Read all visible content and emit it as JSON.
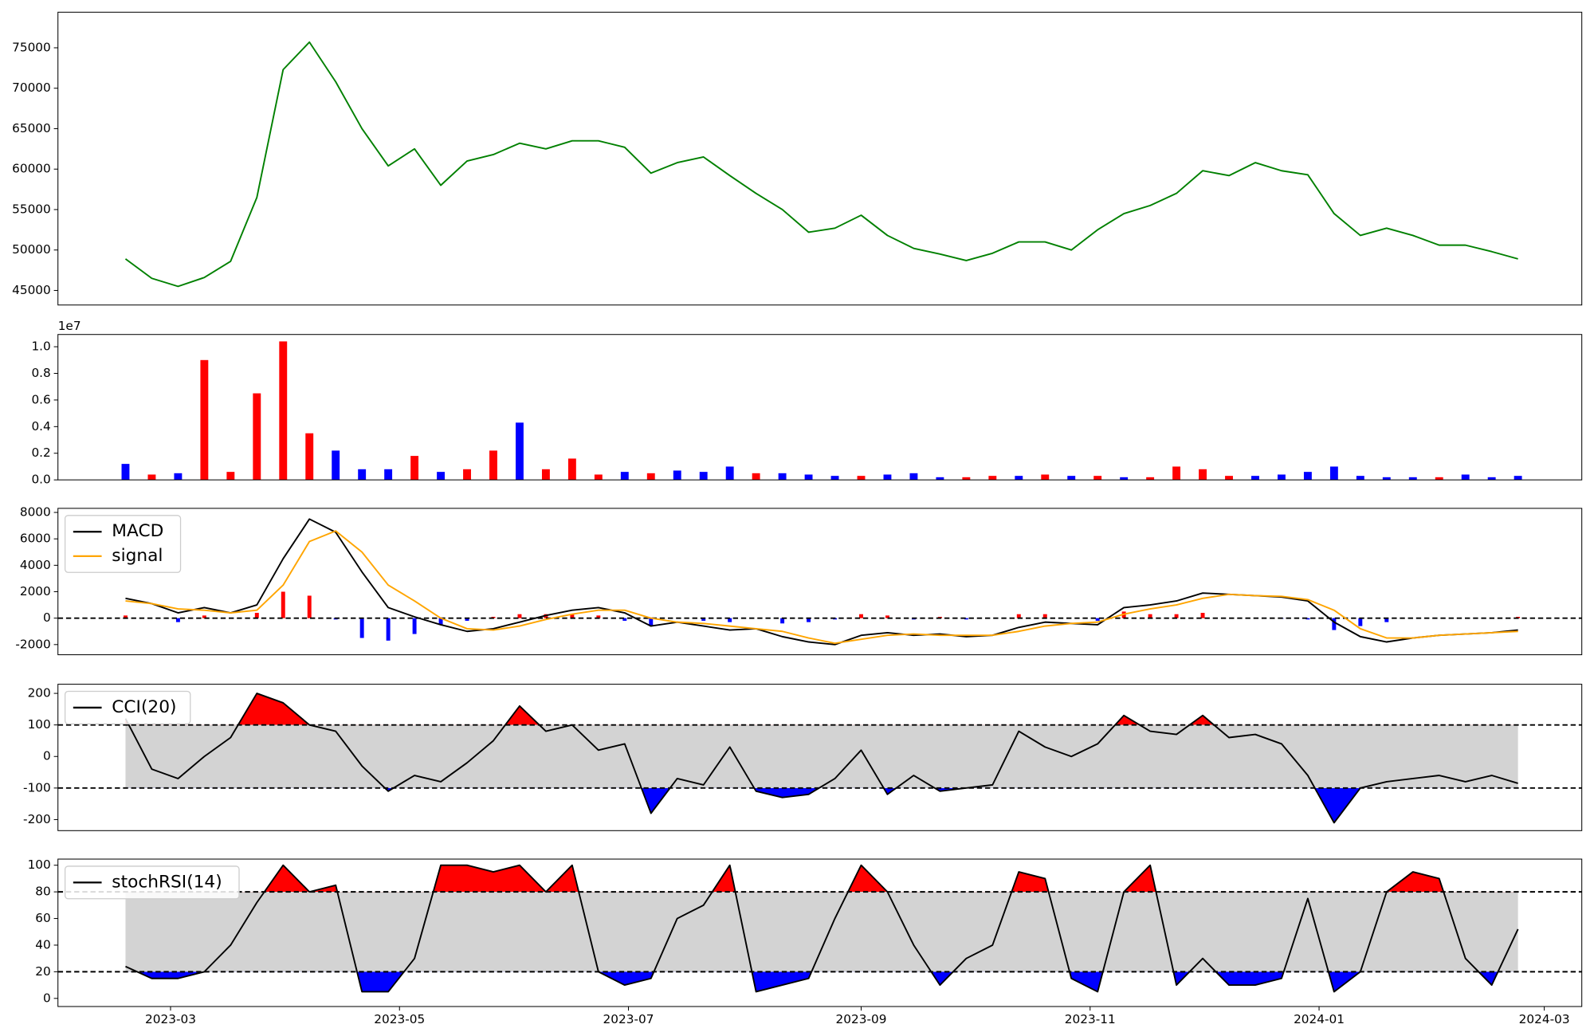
{
  "chart_data": [
    {
      "type": "line",
      "xlim": [
        "2023-01-30",
        "2024-03-11"
      ],
      "ylim": [
        43200,
        79400
      ],
      "yticks": [
        45000,
        50000,
        55000,
        60000,
        65000,
        70000,
        75000
      ],
      "x": [
        "2023-02-17",
        "2023-02-24",
        "2023-03-03",
        "2023-03-10",
        "2023-03-17",
        "2023-03-24",
        "2023-03-31",
        "2023-04-07",
        "2023-04-14",
        "2023-04-21",
        "2023-04-28",
        "2023-05-05",
        "2023-05-12",
        "2023-05-19",
        "2023-05-26",
        "2023-06-02",
        "2023-06-09",
        "2023-06-16",
        "2023-06-23",
        "2023-06-30",
        "2023-07-07",
        "2023-07-14",
        "2023-07-21",
        "2023-07-28",
        "2023-08-04",
        "2023-08-11",
        "2023-08-18",
        "2023-08-25",
        "2023-09-01",
        "2023-09-08",
        "2023-09-15",
        "2023-09-22",
        "2023-09-29",
        "2023-10-06",
        "2023-10-13",
        "2023-10-20",
        "2023-10-27",
        "2023-11-03",
        "2023-11-10",
        "2023-11-17",
        "2023-11-24",
        "2023-12-01",
        "2023-12-08",
        "2023-12-15",
        "2023-12-22",
        "2023-12-29",
        "2024-01-05",
        "2024-01-12",
        "2024-01-19",
        "2024-01-26",
        "2024-02-02",
        "2024-02-09",
        "2024-02-16",
        "2024-02-23"
      ],
      "series": [
        {
          "color": "green",
          "values": [
            48900,
            46500,
            45500,
            46600,
            48600,
            56500,
            72300,
            75700,
            70800,
            65000,
            60400,
            62500,
            58000,
            61000,
            61800,
            63200,
            62500,
            63500,
            63500,
            62700,
            59500,
            60800,
            61500,
            59200,
            57000,
            55000,
            52200,
            52700,
            54300,
            51800,
            50200,
            49500,
            48700,
            49600,
            51000,
            51000,
            50000,
            52500,
            54500,
            55500,
            57000,
            59800,
            59200,
            60800,
            59800,
            59300,
            54500,
            51800,
            52700,
            51800,
            50600,
            50600,
            49800,
            48900
          ]
        }
      ]
    },
    {
      "type": "bar",
      "xlim": [
        "2023-01-30",
        "2024-03-11"
      ],
      "ylim": [
        0,
        10920000
      ],
      "offset_text": "1e7",
      "yticks": [
        {
          "value": 0,
          "label": "0.0"
        },
        {
          "value": 2000000,
          "label": "0.2"
        },
        {
          "value": 4000000,
          "label": "0.4"
        },
        {
          "value": 6000000,
          "label": "0.6"
        },
        {
          "value": 8000000,
          "label": "0.8"
        },
        {
          "value": 10000000,
          "label": "1.0"
        }
      ],
      "x": [
        "2023-02-17",
        "2023-02-24",
        "2023-03-03",
        "2023-03-10",
        "2023-03-17",
        "2023-03-24",
        "2023-03-31",
        "2023-04-07",
        "2023-04-14",
        "2023-04-21",
        "2023-04-28",
        "2023-05-05",
        "2023-05-12",
        "2023-05-19",
        "2023-05-26",
        "2023-06-02",
        "2023-06-09",
        "2023-06-16",
        "2023-06-23",
        "2023-06-30",
        "2023-07-07",
        "2023-07-14",
        "2023-07-21",
        "2023-07-28",
        "2023-08-04",
        "2023-08-11",
        "2023-08-18",
        "2023-08-25",
        "2023-09-01",
        "2023-09-08",
        "2023-09-15",
        "2023-09-22",
        "2023-09-29",
        "2023-10-06",
        "2023-10-13",
        "2023-10-20",
        "2023-10-27",
        "2023-11-03",
        "2023-11-10",
        "2023-11-17",
        "2023-11-24",
        "2023-12-01",
        "2023-12-08",
        "2023-12-15",
        "2023-12-22",
        "2023-12-29",
        "2024-01-05",
        "2024-01-12",
        "2024-01-19",
        "2024-01-26",
        "2024-02-02",
        "2024-02-09",
        "2024-02-16",
        "2024-02-23"
      ],
      "series": [
        {
          "values": [
            1200000,
            400000,
            500000,
            9000000,
            600000,
            6500000,
            10400000,
            3500000,
            2200000,
            800000,
            800000,
            1800000,
            600000,
            800000,
            2200000,
            4300000,
            800000,
            1600000,
            400000,
            600000,
            500000,
            700000,
            600000,
            1000000,
            500000,
            500000,
            400000,
            300000,
            300000,
            400000,
            500000,
            200000,
            200000,
            300000,
            300000,
            400000,
            300000,
            300000,
            200000,
            200000,
            1000000,
            800000,
            300000,
            300000,
            400000,
            600000,
            1000000,
            300000,
            200000,
            200000,
            200000,
            400000,
            200000,
            300000
          ],
          "colors": [
            "blue",
            "red",
            "blue",
            "red",
            "red",
            "red",
            "red",
            "red",
            "blue",
            "blue",
            "blue",
            "red",
            "blue",
            "red",
            "red",
            "blue",
            "red",
            "red",
            "red",
            "blue",
            "red",
            "blue",
            "blue",
            "blue",
            "red",
            "blue",
            "blue",
            "blue",
            "red",
            "blue",
            "blue",
            "blue",
            "red",
            "red",
            "blue",
            "red",
            "blue",
            "red",
            "blue",
            "red",
            "red",
            "red",
            "red",
            "blue",
            "blue",
            "blue",
            "blue",
            "blue",
            "blue",
            "blue",
            "red",
            "blue",
            "blue",
            "blue"
          ]
        }
      ]
    },
    {
      "type": "macd",
      "xlim": [
        "2023-01-30",
        "2024-03-11"
      ],
      "ylim": [
        -2770,
        8310
      ],
      "yticks": [
        -2000,
        0,
        2000,
        4000,
        6000,
        8000
      ],
      "hlines": [
        0
      ],
      "legend": "upper left",
      "x": [
        "2023-02-17",
        "2023-02-24",
        "2023-03-03",
        "2023-03-10",
        "2023-03-17",
        "2023-03-24",
        "2023-03-31",
        "2023-04-07",
        "2023-04-14",
        "2023-04-21",
        "2023-04-28",
        "2023-05-05",
        "2023-05-12",
        "2023-05-19",
        "2023-05-26",
        "2023-06-02",
        "2023-06-09",
        "2023-06-16",
        "2023-06-23",
        "2023-06-30",
        "2023-07-07",
        "2023-07-14",
        "2023-07-21",
        "2023-07-28",
        "2023-08-04",
        "2023-08-11",
        "2023-08-18",
        "2023-08-25",
        "2023-09-01",
        "2023-09-08",
        "2023-09-15",
        "2023-09-22",
        "2023-09-29",
        "2023-10-06",
        "2023-10-13",
        "2023-10-20",
        "2023-10-27",
        "2023-11-03",
        "2023-11-10",
        "2023-11-17",
        "2023-11-24",
        "2023-12-01",
        "2023-12-08",
        "2023-12-15",
        "2023-12-22",
        "2023-12-29",
        "2024-01-05",
        "2024-01-12",
        "2024-01-19",
        "2024-01-26",
        "2024-02-02",
        "2024-02-09",
        "2024-02-16",
        "2024-02-23"
      ],
      "series": [
        {
          "name": "MACD",
          "color": "black",
          "values": [
            1500,
            1100,
            400,
            800,
            400,
            1000,
            4500,
            7500,
            6500,
            3500,
            800,
            100,
            -500,
            -1000,
            -800,
            -300,
            200,
            600,
            800,
            400,
            -600,
            -300,
            -600,
            -900,
            -800,
            -1400,
            -1800,
            -2000,
            -1300,
            -1100,
            -1300,
            -1200,
            -1400,
            -1300,
            -700,
            -300,
            -400,
            -500,
            800,
            1000,
            1300,
            1900,
            1800,
            1700,
            1600,
            1300,
            -300,
            -1400,
            -1800,
            -1500,
            -1300,
            -1200,
            -1100,
            -900
          ]
        },
        {
          "name": "signal",
          "color": "orange",
          "values": [
            1300,
            1100,
            700,
            600,
            400,
            600,
            2500,
            5800,
            6600,
            5000,
            2500,
            1300,
            0,
            -800,
            -900,
            -600,
            -100,
            300,
            600,
            600,
            0,
            -300,
            -400,
            -600,
            -800,
            -1000,
            -1500,
            -1900,
            -1600,
            -1300,
            -1200,
            -1300,
            -1300,
            -1300,
            -1000,
            -600,
            -400,
            -300,
            300,
            700,
            1000,
            1500,
            1800,
            1700,
            1650,
            1400,
            600,
            -800,
            -1500,
            -1500,
            -1300,
            -1200,
            -1100,
            -1000
          ]
        },
        {
          "style": "bar",
          "positive_color": "red",
          "negative_color": "blue",
          "values": [
            200,
            0,
            -300,
            200,
            0,
            400,
            2000,
            1700,
            -100,
            -1500,
            -1700,
            -1200,
            -500,
            -200,
            100,
            300,
            300,
            300,
            200,
            -200,
            -600,
            0,
            -200,
            -300,
            0,
            -400,
            -300,
            -100,
            300,
            200,
            -100,
            100,
            -100,
            0,
            300,
            300,
            0,
            -200,
            500,
            300,
            300,
            400,
            0,
            0,
            -50,
            -100,
            -900,
            -600,
            -300,
            0,
            0,
            0,
            0,
            100
          ]
        }
      ]
    },
    {
      "type": "oscillator",
      "xlim": [
        "2023-01-30",
        "2024-03-11"
      ],
      "ylim": [
        -235,
        229
      ],
      "yticks": [
        -200,
        -100,
        0,
        100,
        200
      ],
      "upper": 100,
      "lower": -100,
      "upper_fill": "red",
      "lower_fill": "blue",
      "band_fill": "lightgray",
      "legend": "upper left",
      "x": [
        "2023-02-17",
        "2023-02-24",
        "2023-03-03",
        "2023-03-10",
        "2023-03-17",
        "2023-03-24",
        "2023-03-31",
        "2023-04-07",
        "2023-04-14",
        "2023-04-21",
        "2023-04-28",
        "2023-05-05",
        "2023-05-12",
        "2023-05-19",
        "2023-05-26",
        "2023-06-02",
        "2023-06-09",
        "2023-06-16",
        "2023-06-23",
        "2023-06-30",
        "2023-07-07",
        "2023-07-14",
        "2023-07-21",
        "2023-07-28",
        "2023-08-04",
        "2023-08-11",
        "2023-08-18",
        "2023-08-25",
        "2023-09-01",
        "2023-09-08",
        "2023-09-15",
        "2023-09-22",
        "2023-09-29",
        "2023-10-06",
        "2023-10-13",
        "2023-10-20",
        "2023-10-27",
        "2023-11-03",
        "2023-11-10",
        "2023-11-17",
        "2023-11-24",
        "2023-12-01",
        "2023-12-08",
        "2023-12-15",
        "2023-12-22",
        "2023-12-29",
        "2024-01-05",
        "2024-01-12",
        "2024-01-19",
        "2024-01-26",
        "2024-02-02",
        "2024-02-09",
        "2024-02-16",
        "2024-02-23"
      ],
      "series": [
        {
          "name": "CCI(20)",
          "color": "black",
          "values": [
            120,
            -40,
            -70,
            0,
            60,
            200,
            170,
            100,
            80,
            -30,
            -110,
            -60,
            -80,
            -20,
            50,
            160,
            80,
            100,
            20,
            40,
            -180,
            -70,
            -90,
            30,
            -110,
            -130,
            -120,
            -70,
            20,
            -120,
            -60,
            -110,
            -100,
            -90,
            80,
            30,
            0,
            40,
            130,
            80,
            70,
            130,
            60,
            70,
            40,
            -60,
            -210,
            -100,
            -80,
            -70,
            -60,
            -80,
            -60,
            -85
          ]
        }
      ]
    },
    {
      "type": "oscillator",
      "xlim": [
        "2023-01-30",
        "2024-03-11"
      ],
      "ylim": [
        -6.1,
        104.6
      ],
      "yticks": [
        0,
        20,
        40,
        60,
        80,
        100
      ],
      "upper": 80,
      "lower": 20,
      "upper_fill": "red",
      "lower_fill": "blue",
      "band_fill": "lightgray",
      "legend": "upper left",
      "xticks": [
        {
          "value": "2023-03-01",
          "label": "2023-03"
        },
        {
          "value": "2023-05-01",
          "label": "2023-05"
        },
        {
          "value": "2023-07-01",
          "label": "2023-07"
        },
        {
          "value": "2023-09-01",
          "label": "2023-09"
        },
        {
          "value": "2023-11-01",
          "label": "2023-11"
        },
        {
          "value": "2024-01-01",
          "label": "2024-01"
        },
        {
          "value": "2024-03-01",
          "label": "2024-03"
        }
      ],
      "x": [
        "2023-02-17",
        "2023-02-24",
        "2023-03-03",
        "2023-03-10",
        "2023-03-17",
        "2023-03-24",
        "2023-03-31",
        "2023-04-07",
        "2023-04-14",
        "2023-04-21",
        "2023-04-28",
        "2023-05-05",
        "2023-05-12",
        "2023-05-19",
        "2023-05-26",
        "2023-06-02",
        "2023-06-09",
        "2023-06-16",
        "2023-06-23",
        "2023-06-30",
        "2023-07-07",
        "2023-07-14",
        "2023-07-21",
        "2023-07-28",
        "2023-08-04",
        "2023-08-11",
        "2023-08-18",
        "2023-08-25",
        "2023-09-01",
        "2023-09-08",
        "2023-09-15",
        "2023-09-22",
        "2023-09-29",
        "2023-10-06",
        "2023-10-13",
        "2023-10-20",
        "2023-10-27",
        "2023-11-03",
        "2023-11-10",
        "2023-11-17",
        "2023-11-24",
        "2023-12-01",
        "2023-12-08",
        "2023-12-15",
        "2023-12-22",
        "2023-12-29",
        "2024-01-05",
        "2024-01-12",
        "2024-01-19",
        "2024-01-26",
        "2024-02-02",
        "2024-02-09",
        "2024-02-16",
        "2024-02-23"
      ],
      "series": [
        {
          "name": "stochRSI(14)",
          "color": "black",
          "values": [
            24,
            15,
            15,
            20,
            40,
            72,
            100,
            80,
            85,
            5,
            5,
            30,
            100,
            100,
            95,
            100,
            80,
            100,
            20,
            10,
            15,
            60,
            70,
            100,
            5,
            10,
            15,
            60,
            100,
            80,
            40,
            10,
            30,
            40,
            95,
            90,
            15,
            5,
            80,
            100,
            10,
            30,
            10,
            10,
            15,
            75,
            5,
            20,
            80,
            95,
            90,
            30,
            10,
            52
          ]
        }
      ]
    }
  ]
}
